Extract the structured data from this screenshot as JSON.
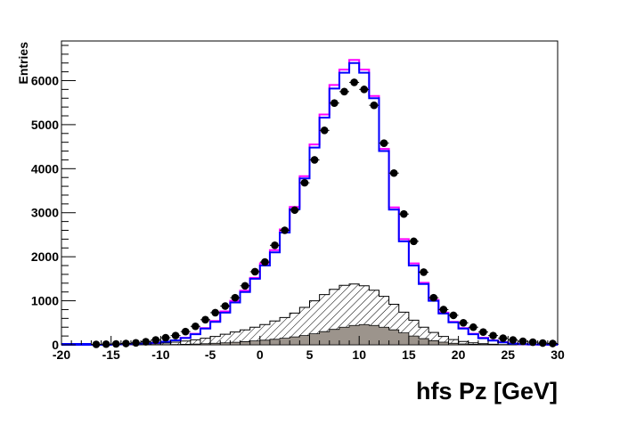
{
  "chart_data": {
    "type": "histogram",
    "title": "",
    "xlabel": "hfs Pz [GeV]",
    "ylabel": "Entries",
    "xlim": [
      -20,
      30
    ],
    "ylim": [
      0,
      6900
    ],
    "grid": false,
    "legend": "none",
    "bin_width": 1,
    "x_ticks": [
      -20,
      -15,
      -10,
      -5,
      0,
      5,
      10,
      15,
      20,
      25,
      30
    ],
    "y_ticks": [
      0,
      1000,
      2000,
      3000,
      4000,
      5000,
      6000
    ],
    "colors": {
      "mc_total_blue": "#0000ff",
      "mc_alt_magenta": "#ff00ff",
      "background_hatched": "#000000",
      "background_filled": "#9c948c",
      "data_points": "#000000"
    },
    "series": [
      {
        "kind": "filled",
        "bin_edges": [
          -20,
          -19,
          -18,
          -17,
          -16,
          -15,
          -14,
          -13,
          -12,
          -11,
          -10,
          -9,
          -8,
          -7,
          -6,
          -5,
          -4,
          -3,
          -2,
          -1,
          0,
          1,
          2,
          3,
          4,
          5,
          6,
          7,
          8,
          9,
          10,
          11,
          12,
          13,
          14,
          15,
          16,
          17,
          18,
          19,
          20,
          21,
          22,
          23,
          24,
          25,
          26,
          27,
          28,
          29,
          30
        ],
        "values": [
          0,
          0,
          0,
          0,
          0,
          0,
          0,
          0,
          0,
          2,
          5,
          8,
          12,
          18,
          25,
          35,
          45,
          58,
          72,
          88,
          105,
          125,
          150,
          180,
          210,
          250,
          300,
          350,
          400,
          440,
          460,
          440,
          400,
          340,
          270,
          200,
          140,
          95,
          60,
          35,
          20,
          12,
          6,
          3,
          0,
          0,
          0,
          0,
          0,
          0
        ]
      },
      {
        "kind": "hatched",
        "bin_edges": [
          -20,
          -19,
          -18,
          -17,
          -16,
          -15,
          -14,
          -13,
          -12,
          -11,
          -10,
          -9,
          -8,
          -7,
          -6,
          -5,
          -4,
          -3,
          -2,
          -1,
          0,
          1,
          2,
          3,
          4,
          5,
          6,
          7,
          8,
          9,
          10,
          11,
          12,
          13,
          14,
          15,
          16,
          17,
          18,
          19,
          20,
          21,
          22,
          23,
          24,
          25,
          26,
          27,
          28,
          29,
          30
        ],
        "values": [
          0,
          0,
          0,
          0,
          0,
          3,
          5,
          10,
          15,
          25,
          40,
          60,
          85,
          115,
          150,
          190,
          240,
          290,
          340,
          400,
          460,
          540,
          620,
          720,
          850,
          1000,
          1140,
          1260,
          1350,
          1380,
          1340,
          1240,
          1100,
          920,
          740,
          560,
          400,
          280,
          190,
          120,
          75,
          45,
          25,
          12,
          5,
          2,
          0,
          0,
          0,
          0
        ]
      },
      {
        "kind": "step-line",
        "color": "magenta",
        "bin_edges": [
          -20,
          -19,
          -18,
          -17,
          -16,
          -15,
          -14,
          -13,
          -12,
          -11,
          -10,
          -9,
          -8,
          -7,
          -6,
          -5,
          -4,
          -3,
          -2,
          -1,
          0,
          1,
          2,
          3,
          4,
          5,
          6,
          7,
          8,
          9,
          10,
          11,
          12,
          13,
          14,
          15,
          16,
          17,
          18,
          19,
          20,
          21,
          22,
          23,
          24,
          25,
          26,
          27,
          28,
          29,
          30
        ],
        "values": [
          0,
          0,
          0,
          0,
          0,
          10,
          15,
          20,
          30,
          45,
          70,
          100,
          160,
          250,
          380,
          540,
          760,
          1000,
          1230,
          1520,
          1850,
          2150,
          2620,
          3130,
          3830,
          4550,
          5230,
          5900,
          6250,
          6470,
          6250,
          5650,
          4450,
          3120,
          2400,
          1850,
          1410,
          1020,
          730,
          520,
          380,
          250,
          160,
          100,
          60,
          30,
          15,
          8,
          5,
          2
        ]
      },
      {
        "kind": "step-line",
        "color": "blue",
        "bin_edges": [
          -20,
          -19,
          -18,
          -17,
          -16,
          -15,
          -14,
          -13,
          -12,
          -11,
          -10,
          -9,
          -8,
          -7,
          -6,
          -5,
          -4,
          -3,
          -2,
          -1,
          0,
          1,
          2,
          3,
          4,
          5,
          6,
          7,
          8,
          9,
          10,
          11,
          12,
          13,
          14,
          15,
          16,
          17,
          18,
          19,
          20,
          21,
          22,
          23,
          24,
          25,
          26,
          27,
          28,
          29,
          30
        ],
        "values": [
          0,
          0,
          0,
          0,
          0,
          10,
          15,
          20,
          30,
          45,
          70,
          100,
          155,
          240,
          370,
          520,
          730,
          960,
          1200,
          1500,
          1800,
          2100,
          2550,
          3080,
          3780,
          4480,
          5160,
          5820,
          6180,
          6400,
          6180,
          5600,
          4400,
          3070,
          2350,
          1800,
          1380,
          1000,
          710,
          510,
          370,
          240,
          150,
          95,
          55,
          28,
          14,
          8,
          5,
          2
        ]
      },
      {
        "kind": "points",
        "x": [
          -16.5,
          -15.5,
          -14.5,
          -13.5,
          -12.5,
          -11.5,
          -10.5,
          -9.5,
          -8.5,
          -7.5,
          -6.5,
          -5.5,
          -4.5,
          -3.5,
          -2.5,
          -1.5,
          -0.5,
          0.5,
          1.5,
          2.5,
          3.5,
          4.5,
          5.5,
          6.5,
          7.5,
          8.5,
          9.5,
          10.5,
          11.5,
          12.5,
          13.5,
          14.5,
          15.5,
          16.5,
          17.5,
          18.5,
          19.5,
          20.5,
          21.5,
          22.5,
          23.5,
          24.5,
          25.5,
          26.5,
          27.5,
          28.5,
          29.5
        ],
        "values": [
          10,
          15,
          20,
          30,
          45,
          70,
          110,
          160,
          210,
          300,
          420,
          570,
          730,
          880,
          1070,
          1340,
          1660,
          1880,
          2260,
          2600,
          3060,
          3680,
          4200,
          4870,
          5490,
          5750,
          5960,
          5800,
          5440,
          4580,
          3900,
          2970,
          2350,
          1650,
          1070,
          800,
          670,
          500,
          400,
          290,
          210,
          150,
          110,
          80,
          60,
          40,
          30
        ]
      }
    ]
  }
}
